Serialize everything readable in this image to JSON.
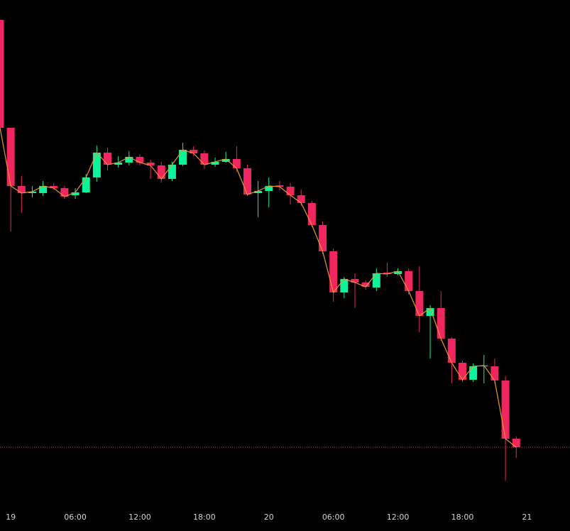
{
  "chart_data": {
    "type": "candlestick",
    "x": [
      -1,
      0,
      1,
      2,
      3,
      4,
      5,
      6,
      7,
      8,
      9,
      10,
      11,
      12,
      13,
      14,
      15,
      16,
      17,
      18,
      19,
      20,
      21,
      22,
      23,
      24,
      25,
      26,
      27,
      28,
      29,
      30,
      31,
      32,
      33,
      34,
      35,
      36,
      37,
      38,
      39,
      40,
      41,
      42,
      43,
      44,
      45,
      46,
      47
    ],
    "open": [
      720,
      568,
      486,
      476,
      476,
      486,
      483,
      473,
      477,
      498,
      533,
      516,
      519,
      527,
      519,
      515,
      496,
      516,
      537,
      532,
      516,
      520,
      524,
      511,
      476,
      479,
      487,
      485,
      473,
      462,
      431,
      394,
      336,
      355,
      350,
      343,
      364,
      362,
      366,
      338,
      303,
      314,
      271,
      237,
      213,
      232,
      232,
      212,
      130
    ],
    "high": [
      720,
      568,
      500,
      486,
      493,
      490,
      486,
      483,
      503,
      543,
      540,
      528,
      535,
      531,
      523,
      520,
      520,
      547,
      542,
      536,
      526,
      534,
      542,
      516,
      493,
      498,
      493,
      490,
      481,
      465,
      436,
      398,
      358,
      363,
      353,
      370,
      378,
      370,
      370,
      373,
      318,
      338,
      273,
      240,
      236,
      248,
      243,
      218,
      133
    ],
    "low": [
      568,
      422,
      448,
      470,
      472,
      480,
      468,
      468,
      476,
      492,
      508,
      512,
      515,
      515,
      496,
      491,
      493,
      514,
      528,
      510,
      513,
      519,
      506,
      472,
      442,
      456,
      480,
      460,
      458,
      428,
      390,
      323,
      328,
      314,
      340,
      338,
      358,
      360,
      333,
      280,
      243,
      268,
      208,
      210,
      210,
      208,
      208,
      71,
      103
    ],
    "close": [
      568,
      486,
      476,
      478,
      486,
      483,
      471,
      477,
      498,
      533,
      516,
      519,
      527,
      519,
      515,
      496,
      516,
      537,
      532,
      516,
      520,
      524,
      511,
      474,
      479,
      486,
      485,
      473,
      462,
      431,
      394,
      336,
      355,
      350,
      344,
      363,
      362,
      366,
      338,
      303,
      314,
      271,
      237,
      213,
      232,
      233,
      212,
      130,
      118
    ],
    "up_color": "#0cf49b",
    "down_color": "#f0265f",
    "line_color": "#e8962a",
    "last_price": 118,
    "last_price_color": "#f0265f",
    "xlim": [
      -1,
      52
    ],
    "ylim": [
      0,
      748
    ],
    "xticks": [
      {
        "value": 0,
        "label": "19"
      },
      {
        "value": 6,
        "label": "06:00"
      },
      {
        "value": 12,
        "label": "12:00"
      },
      {
        "value": 18,
        "label": "18:00"
      },
      {
        "value": 24,
        "label": "20"
      },
      {
        "value": 30,
        "label": "06:00"
      },
      {
        "value": 36,
        "label": "12:00"
      },
      {
        "value": 42,
        "label": "18:00"
      },
      {
        "value": 48,
        "label": "21"
      }
    ]
  }
}
